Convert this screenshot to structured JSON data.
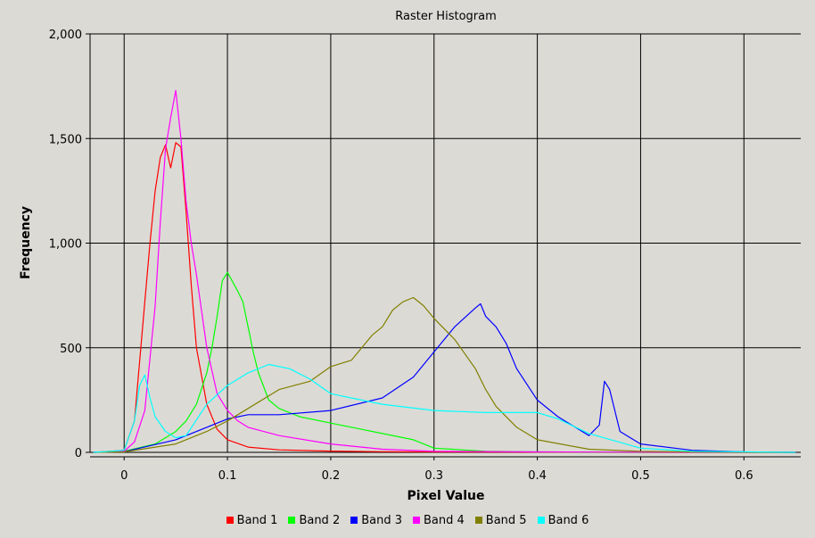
{
  "chart_data": {
    "type": "line",
    "title": "Raster Histogram",
    "xlabel": "Pixel Value",
    "ylabel": "Frequency",
    "xlim": [
      -0.033,
      0.655
    ],
    "ylim": [
      0,
      2000
    ],
    "x_ticks": [
      0,
      0.1,
      0.2,
      0.3,
      0.4,
      0.5,
      0.6
    ],
    "x_tick_labels": [
      "0",
      "0.1",
      "0.2",
      "0.3",
      "0.4",
      "0.5",
      "0.6"
    ],
    "y_ticks": [
      0,
      500,
      1000,
      1500,
      2000
    ],
    "y_tick_labels": [
      "0",
      "500",
      "1,000",
      "1,500",
      "2,000"
    ],
    "grid": true,
    "legend_position": "bottom",
    "series": [
      {
        "name": "Band 1",
        "color": "#ff0000",
        "x": [
          -0.03,
          0,
          0.01,
          0.02,
          0.025,
          0.03,
          0.035,
          0.04,
          0.045,
          0.05,
          0.055,
          0.06,
          0.065,
          0.07,
          0.08,
          0.09,
          0.1,
          0.12,
          0.15,
          0.2,
          0.25,
          0.3,
          0.4,
          0.5,
          0.65
        ],
        "y": [
          0,
          10,
          150,
          720,
          1000,
          1250,
          1410,
          1470,
          1360,
          1480,
          1460,
          1150,
          800,
          500,
          230,
          110,
          60,
          25,
          12,
          6,
          3,
          2,
          1,
          0,
          0
        ]
      },
      {
        "name": "Band 2",
        "color": "#00ff00",
        "x": [
          -0.03,
          0,
          0.03,
          0.05,
          0.06,
          0.07,
          0.08,
          0.085,
          0.09,
          0.095,
          0.1,
          0.11,
          0.115,
          0.12,
          0.125,
          0.13,
          0.14,
          0.15,
          0.17,
          0.2,
          0.23,
          0.25,
          0.28,
          0.3,
          0.35,
          0.4,
          0.5,
          0.65
        ],
        "y": [
          0,
          5,
          40,
          100,
          150,
          230,
          380,
          500,
          650,
          820,
          860,
          770,
          720,
          600,
          480,
          380,
          250,
          210,
          170,
          140,
          110,
          90,
          60,
          20,
          5,
          2,
          0,
          0
        ]
      },
      {
        "name": "Band 3",
        "color": "#0000ff",
        "x": [
          -0.03,
          0,
          0.05,
          0.08,
          0.1,
          0.12,
          0.15,
          0.2,
          0.25,
          0.28,
          0.3,
          0.32,
          0.34,
          0.345,
          0.35,
          0.36,
          0.37,
          0.38,
          0.4,
          0.42,
          0.45,
          0.46,
          0.465,
          0.47,
          0.48,
          0.5,
          0.55,
          0.6,
          0.65
        ],
        "y": [
          0,
          3,
          60,
          120,
          160,
          180,
          180,
          200,
          260,
          360,
          480,
          600,
          690,
          710,
          650,
          600,
          520,
          400,
          250,
          170,
          80,
          130,
          340,
          300,
          100,
          40,
          10,
          2,
          0
        ]
      },
      {
        "name": "Band 4",
        "color": "#ff00ff",
        "x": [
          -0.03,
          0,
          0.01,
          0.02,
          0.03,
          0.035,
          0.04,
          0.045,
          0.05,
          0.055,
          0.06,
          0.065,
          0.07,
          0.08,
          0.09,
          0.1,
          0.11,
          0.12,
          0.15,
          0.2,
          0.25,
          0.3,
          0.4,
          0.5,
          0.65
        ],
        "y": [
          0,
          5,
          50,
          200,
          700,
          1100,
          1450,
          1600,
          1730,
          1500,
          1200,
          1000,
          850,
          500,
          280,
          200,
          150,
          120,
          80,
          40,
          15,
          5,
          2,
          1,
          0
        ]
      },
      {
        "name": "Band 5",
        "color": "#808000",
        "x": [
          -0.03,
          0,
          0.05,
          0.08,
          0.1,
          0.12,
          0.15,
          0.18,
          0.2,
          0.22,
          0.24,
          0.25,
          0.26,
          0.27,
          0.28,
          0.29,
          0.3,
          0.32,
          0.34,
          0.35,
          0.36,
          0.38,
          0.4,
          0.45,
          0.5,
          0.55,
          0.65
        ],
        "y": [
          0,
          2,
          40,
          100,
          150,
          210,
          300,
          340,
          410,
          440,
          560,
          600,
          680,
          720,
          740,
          700,
          640,
          540,
          400,
          300,
          220,
          120,
          60,
          15,
          5,
          2,
          0
        ]
      },
      {
        "name": "Band 6",
        "color": "#00ffff",
        "x": [
          -0.03,
          0,
          0.01,
          0.015,
          0.02,
          0.025,
          0.03,
          0.04,
          0.05,
          0.06,
          0.08,
          0.1,
          0.12,
          0.14,
          0.16,
          0.18,
          0.2,
          0.25,
          0.3,
          0.35,
          0.4,
          0.42,
          0.45,
          0.5,
          0.55,
          0.65
        ],
        "y": [
          0,
          10,
          150,
          320,
          370,
          260,
          170,
          100,
          70,
          80,
          230,
          320,
          380,
          420,
          400,
          350,
          280,
          230,
          200,
          190,
          190,
          160,
          90,
          20,
          5,
          0
        ]
      }
    ]
  }
}
